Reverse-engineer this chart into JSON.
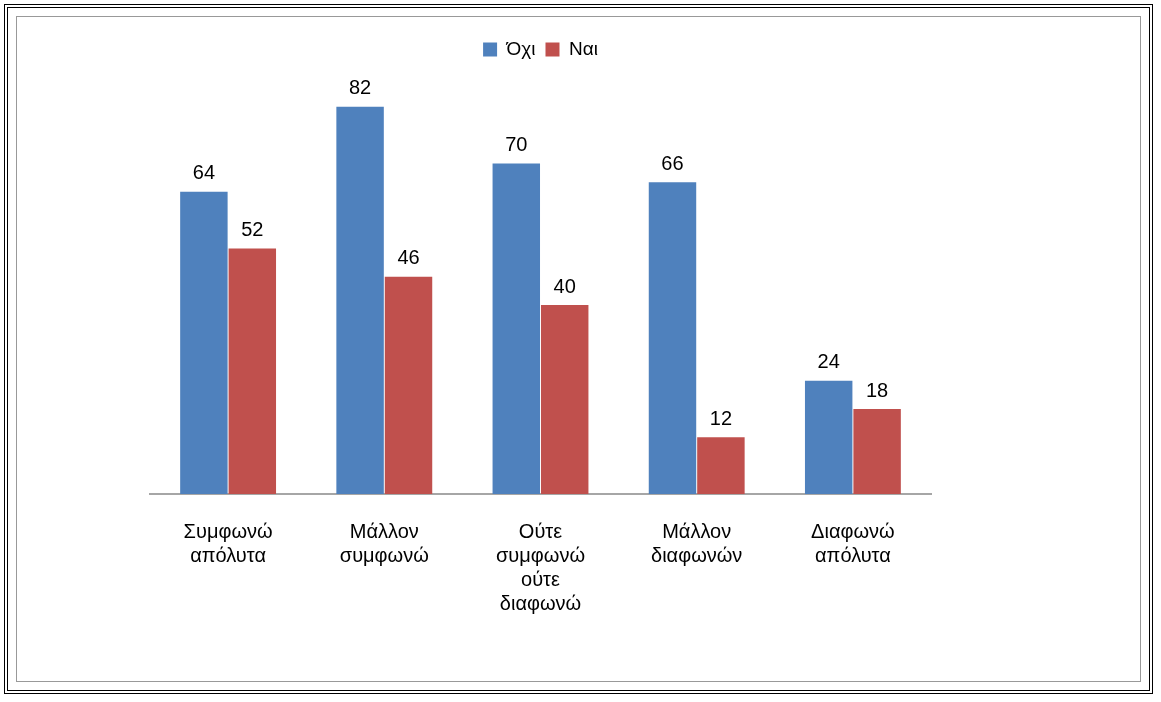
{
  "chart_data": {
    "type": "bar",
    "categories": [
      "Συμφωνώ απόλυτα",
      "Μάλλον συμφωνώ",
      "Ούτε συμφωνώ ούτε διαφωνώ",
      "Μάλλον διαφωνών",
      "Διαφωνώ απόλυτα"
    ],
    "series": [
      {
        "name": "Όχι",
        "color": "#4f81bd",
        "values": [
          64,
          82,
          70,
          66,
          24
        ]
      },
      {
        "name": "Ναι",
        "color": "#c0504d",
        "values": [
          52,
          46,
          40,
          12,
          18
        ]
      }
    ],
    "data_labels": true,
    "legend": "top",
    "grid": false,
    "tick_labels": "x"
  }
}
